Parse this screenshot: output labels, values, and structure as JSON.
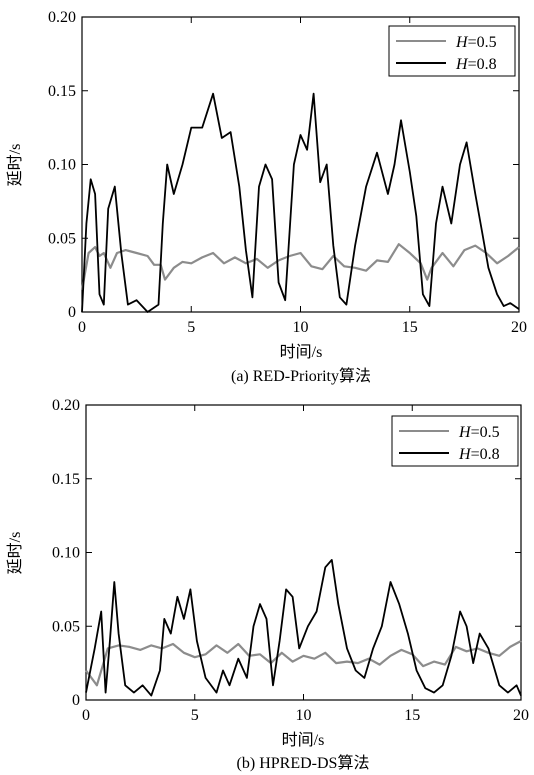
{
  "figure": {
    "panels": [
      {
        "caption": "(a) RED-Priority算法"
      },
      {
        "caption": "(b) HPRED-DS算法"
      }
    ]
  },
  "chart_data": [
    {
      "type": "line",
      "caption": "(a) RED-Priority算法",
      "xlabel": "时间/s",
      "ylabel": "延时/s",
      "xlim": [
        0,
        20
      ],
      "ylim": [
        0,
        0.2
      ],
      "xticks": [
        "0",
        "5",
        "10",
        "15",
        "20"
      ],
      "yticks": [
        "0",
        "0.05",
        "0.10",
        "0.15",
        "0.20"
      ],
      "grid": false,
      "legend_position": "top-right",
      "series": [
        {
          "name": "H=0.5",
          "legend_prefix": "H",
          "legend_suffix": "=0.5",
          "color": "#8c8c8c",
          "x": [
            0,
            0.3,
            0.6,
            0.8,
            1.0,
            1.3,
            1.6,
            2,
            2.5,
            3,
            3.3,
            3.6,
            3.8,
            4.2,
            4.6,
            5,
            5.5,
            6,
            6.5,
            7,
            7.5,
            8,
            8.5,
            9,
            9.5,
            10,
            10.5,
            11,
            11.5,
            12,
            12.5,
            13,
            13.5,
            14,
            14.5,
            15,
            15.5,
            15.8,
            16,
            16.5,
            17,
            17.5,
            18,
            18.5,
            19,
            19.5,
            20
          ],
          "y": [
            0.015,
            0.04,
            0.044,
            0.038,
            0.04,
            0.03,
            0.04,
            0.042,
            0.04,
            0.038,
            0.032,
            0.032,
            0.022,
            0.03,
            0.034,
            0.033,
            0.037,
            0.04,
            0.033,
            0.037,
            0.033,
            0.036,
            0.03,
            0.035,
            0.038,
            0.04,
            0.031,
            0.029,
            0.038,
            0.031,
            0.03,
            0.028,
            0.035,
            0.034,
            0.046,
            0.04,
            0.033,
            0.022,
            0.03,
            0.04,
            0.031,
            0.042,
            0.045,
            0.04,
            0.033,
            0.038,
            0.044
          ]
        },
        {
          "name": "H=0.8",
          "legend_prefix": "H",
          "legend_suffix": "=0.8",
          "color": "#000000",
          "x": [
            0,
            0.2,
            0.4,
            0.6,
            0.8,
            1.0,
            1.2,
            1.5,
            1.8,
            2.1,
            2.5,
            3,
            3.5,
            3.7,
            3.9,
            4.2,
            4.6,
            5,
            5.5,
            6,
            6.4,
            6.8,
            7.2,
            7.5,
            7.8,
            8.1,
            8.4,
            8.7,
            9,
            9.3,
            9.7,
            10,
            10.3,
            10.6,
            10.9,
            11.2,
            11.5,
            11.8,
            12.1,
            12.5,
            13,
            13.5,
            14,
            14.3,
            14.6,
            15,
            15.3,
            15.6,
            15.9,
            16.2,
            16.5,
            16.9,
            17.3,
            17.6,
            18,
            18.3,
            18.6,
            19,
            19.3,
            19.6,
            20
          ],
          "y": [
            0,
            0.06,
            0.09,
            0.08,
            0.012,
            0.005,
            0.07,
            0.085,
            0.04,
            0.005,
            0.008,
            0,
            0.005,
            0.06,
            0.1,
            0.08,
            0.1,
            0.125,
            0.125,
            0.148,
            0.118,
            0.122,
            0.085,
            0.042,
            0.01,
            0.085,
            0.1,
            0.09,
            0.02,
            0.008,
            0.1,
            0.12,
            0.11,
            0.148,
            0.088,
            0.1,
            0.045,
            0.01,
            0.005,
            0.045,
            0.085,
            0.108,
            0.08,
            0.1,
            0.13,
            0.095,
            0.065,
            0.012,
            0.004,
            0.06,
            0.085,
            0.06,
            0.1,
            0.115,
            0.08,
            0.055,
            0.03,
            0.012,
            0.004,
            0.006,
            0.002
          ]
        }
      ]
    },
    {
      "type": "line",
      "caption": "(b) HPRED-DS算法",
      "xlabel": "时间/s",
      "ylabel": "延时/s",
      "xlim": [
        0,
        20
      ],
      "ylim": [
        0,
        0.2
      ],
      "xticks": [
        "0",
        "5",
        "10",
        "15",
        "20"
      ],
      "yticks": [
        "0",
        "0.05",
        "0.10",
        "0.15",
        "0.20"
      ],
      "grid": false,
      "legend_position": "top-right",
      "series": [
        {
          "name": "H=0.5",
          "legend_prefix": "H",
          "legend_suffix": "=0.5",
          "color": "#8c8c8c",
          "x": [
            0,
            0.5,
            1,
            1.5,
            2,
            2.5,
            3,
            3.5,
            4,
            4.5,
            5,
            5.5,
            6,
            6.5,
            7,
            7.5,
            8,
            8.5,
            9,
            9.5,
            10,
            10.5,
            11,
            11.5,
            12,
            12.5,
            13,
            13.5,
            14,
            14.5,
            15,
            15.5,
            16,
            16.5,
            17,
            17.5,
            18,
            18.5,
            19,
            19.5,
            20
          ],
          "y": [
            0.02,
            0.01,
            0.035,
            0.037,
            0.036,
            0.034,
            0.037,
            0.035,
            0.038,
            0.032,
            0.029,
            0.031,
            0.037,
            0.032,
            0.038,
            0.03,
            0.031,
            0.025,
            0.032,
            0.026,
            0.03,
            0.028,
            0.032,
            0.025,
            0.026,
            0.025,
            0.028,
            0.024,
            0.03,
            0.034,
            0.031,
            0.023,
            0.026,
            0.024,
            0.036,
            0.033,
            0.035,
            0.032,
            0.03,
            0.036,
            0.04
          ]
        },
        {
          "name": "H=0.8",
          "legend_prefix": "H",
          "legend_suffix": "=0.8",
          "color": "#000000",
          "x": [
            0,
            0.4,
            0.7,
            0.9,
            1.1,
            1.3,
            1.5,
            1.8,
            2.2,
            2.6,
            3,
            3.4,
            3.6,
            3.9,
            4.2,
            4.5,
            4.8,
            5.1,
            5.5,
            6,
            6.3,
            6.6,
            7,
            7.4,
            7.7,
            8,
            8.3,
            8.6,
            8.9,
            9.2,
            9.5,
            9.8,
            10.2,
            10.6,
            11,
            11.3,
            11.6,
            12,
            12.4,
            12.8,
            13.2,
            13.6,
            14,
            14.4,
            14.8,
            15.2,
            15.6,
            16,
            16.4,
            16.8,
            17.2,
            17.5,
            17.8,
            18.1,
            18.5,
            19,
            19.4,
            19.8,
            20
          ],
          "y": [
            0.005,
            0.035,
            0.06,
            0.005,
            0.04,
            0.08,
            0.045,
            0.01,
            0.005,
            0.01,
            0.003,
            0.02,
            0.055,
            0.045,
            0.07,
            0.055,
            0.075,
            0.04,
            0.015,
            0.005,
            0.02,
            0.01,
            0.028,
            0.015,
            0.05,
            0.065,
            0.055,
            0.01,
            0.04,
            0.075,
            0.07,
            0.035,
            0.05,
            0.06,
            0.09,
            0.095,
            0.065,
            0.035,
            0.02,
            0.015,
            0.035,
            0.05,
            0.08,
            0.065,
            0.045,
            0.02,
            0.008,
            0.005,
            0.01,
            0.03,
            0.06,
            0.05,
            0.025,
            0.045,
            0.035,
            0.01,
            0.005,
            0.01,
            0.003
          ]
        }
      ]
    }
  ]
}
